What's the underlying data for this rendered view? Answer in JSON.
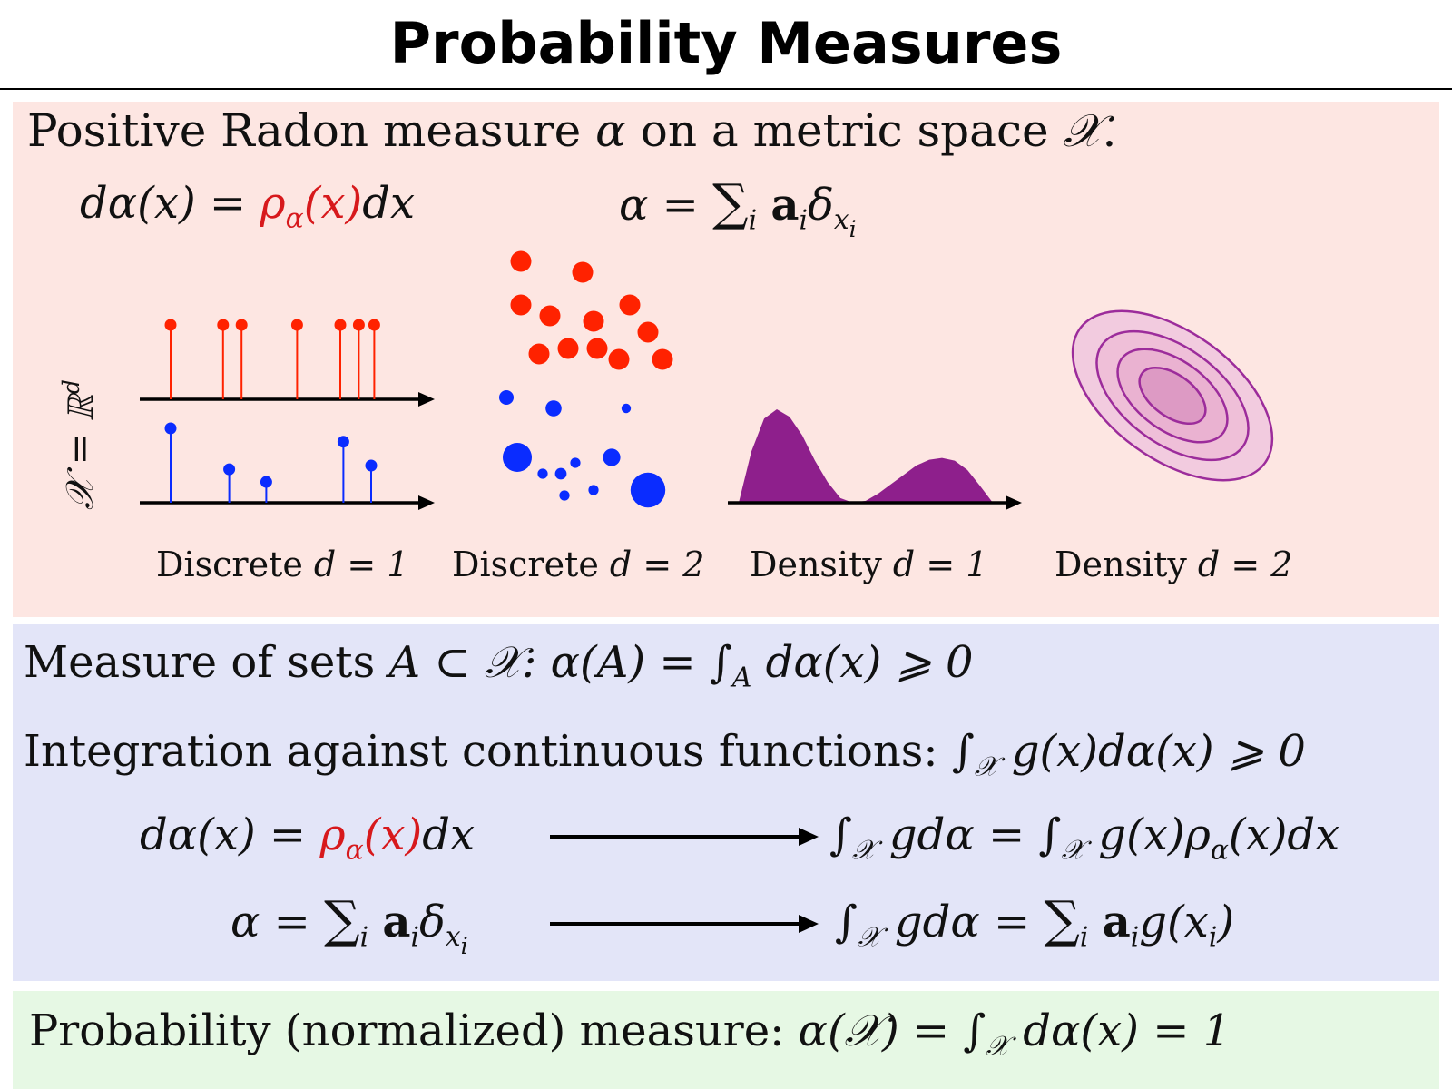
{
  "title": "Probability Measures",
  "panel_top": {
    "intro_text": "Positive Radon measure",
    "intro_mid": "on a metric space",
    "alpha": "α",
    "space": "𝒳",
    "period": ".",
    "density_formula": {
      "lhs": "dα(x) =",
      "rho": "ρ",
      "rho_sub": "α",
      "rho_arg": "(x)",
      "rhs": "dx"
    },
    "discrete_formula": {
      "lhs": "α =",
      "sum": "∑",
      "sum_sub": "i",
      "a": "a",
      "a_sub": "i",
      "delta": "δ",
      "delta_sub": "x",
      "delta_subsub": "i"
    },
    "axis_label": "𝒳 = ℝ",
    "axis_label_sup": "d",
    "captions": [
      {
        "word": "Discrete",
        "eq": "d = 1"
      },
      {
        "word": "Discrete",
        "eq": "d = 2"
      },
      {
        "word": "Density",
        "eq": "d = 1"
      },
      {
        "word": "Density",
        "eq": "d = 2"
      }
    ],
    "colors": {
      "red": "#ff2200",
      "blue": "#0a2cff",
      "purple": "#8e1f8c",
      "contour": "#9c2c9b"
    }
  },
  "panel_mid": {
    "measure_sets": {
      "text": "Measure of sets",
      "cond": "A ⊂ 𝒳:",
      "formula": "α(A) = ∫",
      "int_sub": "A",
      "tail": "dα(x) ⩾ 0"
    },
    "integration": {
      "text": "Integration against continuous functions:",
      "formula": "∫",
      "int_sub": "𝒳",
      "tail": "g(x)dα(x) ⩾ 0"
    },
    "row_density": {
      "lhs": "dα(x) =",
      "rho": "ρ",
      "rho_sub": "α",
      "rho_arg": "(x)",
      "rhs": "dx",
      "result_a": "∫",
      "result_a_sub": "𝒳",
      "result_b": "gdα = ∫",
      "result_b_sub": "𝒳",
      "result_c": "g(x)ρ",
      "result_c_sub": "α",
      "result_d": "(x)dx"
    },
    "row_discrete": {
      "lhs": "α =",
      "sum": "∑",
      "sum_sub": "i",
      "a": "a",
      "a_sub": "i",
      "delta": "δ",
      "delta_sub": "x",
      "delta_subsub": "i",
      "result_a": "∫",
      "result_a_sub": "𝒳",
      "result_b": "gdα =",
      "result_sum": "∑",
      "result_sum_sub": "i",
      "result_a2": "a",
      "result_a2_sub": "i",
      "result_c": "g(x",
      "result_c_sub": "i",
      "result_d": ")"
    }
  },
  "panel_bottom": {
    "text": "Probability (normalized) measure:",
    "formula": "α(𝒳) = ∫",
    "int_sub": "𝒳",
    "tail": "dα(x) = 1"
  },
  "chart_data": [
    {
      "type": "stem",
      "name": "discrete-1d-uniform",
      "x": [
        1.0,
        2.7,
        3.3,
        5.1,
        6.5,
        7.1,
        7.6
      ],
      "values": [
        1,
        1,
        1,
        1,
        1,
        1,
        1
      ]
    },
    {
      "type": "stem",
      "name": "discrete-1d-weighted",
      "x": [
        1.0,
        2.9,
        4.1,
        6.6,
        7.5
      ],
      "values": [
        1.0,
        0.45,
        0.28,
        0.82,
        0.5
      ]
    },
    {
      "type": "scatter",
      "name": "discrete-2d-uniform",
      "points": [
        [
          0.1,
          0.95
        ],
        [
          0.95,
          0.85
        ],
        [
          1.6,
          0.55
        ],
        [
          0.1,
          0.55
        ],
        [
          0.5,
          0.45
        ],
        [
          1.1,
          0.4
        ],
        [
          1.85,
          0.3
        ],
        [
          0.35,
          0.1
        ],
        [
          0.75,
          0.15
        ],
        [
          1.15,
          0.15
        ],
        [
          1.45,
          0.05
        ],
        [
          2.05,
          0.05
        ]
      ],
      "sizes": [
        1,
        1,
        1,
        1,
        1,
        1,
        1,
        1,
        1,
        1,
        1,
        1
      ]
    },
    {
      "type": "scatter",
      "name": "discrete-2d-weighted",
      "points": [
        [
          0.05,
          0.95
        ],
        [
          0.7,
          0.85
        ],
        [
          1.7,
          0.85
        ],
        [
          0.2,
          0.4
        ],
        [
          0.55,
          0.25
        ],
        [
          1.0,
          0.35
        ],
        [
          1.5,
          0.4
        ],
        [
          0.85,
          0.05
        ],
        [
          1.25,
          0.1
        ],
        [
          2.0,
          0.1
        ],
        [
          0.8,
          0.25
        ]
      ],
      "sizes": [
        1.0,
        1.1,
        0.65,
        2.0,
        0.7,
        0.7,
        1.2,
        0.7,
        0.7,
        2.4,
        0.8
      ]
    },
    {
      "type": "area",
      "name": "density-1d",
      "x": [
        0,
        0.5,
        1,
        1.5,
        2,
        2.5,
        3,
        3.5,
        4,
        4.5,
        5,
        5.5,
        6,
        6.5,
        7,
        7.5,
        8,
        8.5,
        9,
        9.5,
        10
      ],
      "values": [
        0,
        0.55,
        0.9,
        1.0,
        0.92,
        0.72,
        0.45,
        0.22,
        0.05,
        0,
        0.02,
        0.1,
        0.2,
        0.3,
        0.4,
        0.46,
        0.48,
        0.45,
        0.35,
        0.18,
        0
      ]
    },
    {
      "type": "contour",
      "name": "density-2d",
      "levels": [
        1,
        2,
        3,
        4
      ]
    }
  ]
}
